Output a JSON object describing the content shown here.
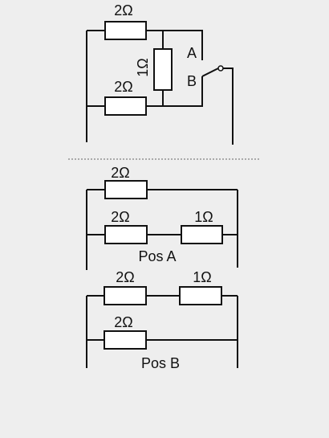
{
  "colors": {
    "background": "#eeeeee",
    "wire": "#111111",
    "resistor_fill": "#ffffff",
    "separator": "#666666"
  },
  "top_circuit": {
    "r_top": "2Ω",
    "r_middle": "1Ω",
    "r_bottom": "2Ω",
    "switch_a": "A",
    "switch_b": "B"
  },
  "pos_a": {
    "r_top": "2Ω",
    "r_lower_left": "2Ω",
    "r_lower_right": "1Ω",
    "caption": "Pos A"
  },
  "pos_b": {
    "r_upper_left": "2Ω",
    "r_upper_right": "1Ω",
    "r_lower": "2Ω",
    "caption": "Pos B"
  }
}
